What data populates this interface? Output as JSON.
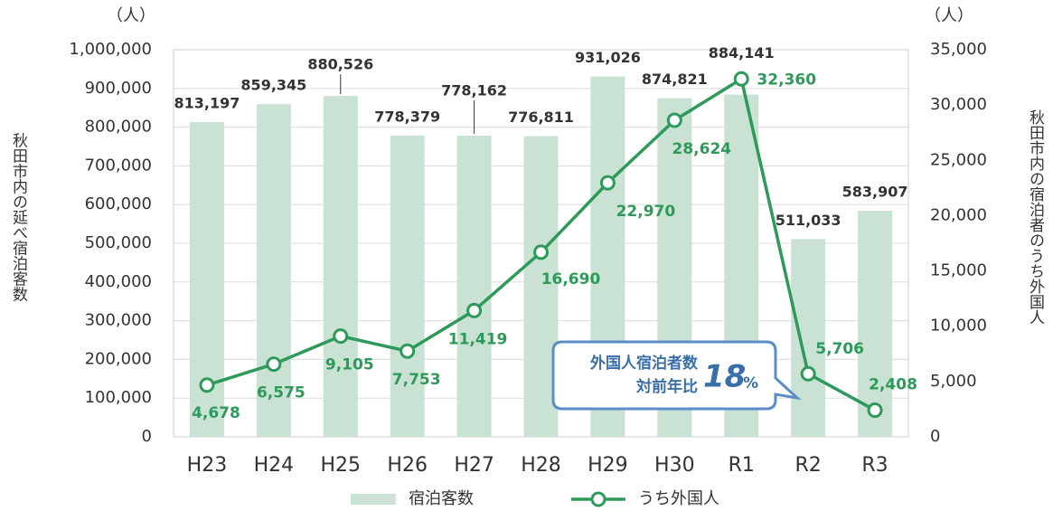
{
  "chart_data": {
    "type": "bar-line",
    "categories": [
      "H23",
      "H24",
      "H25",
      "H26",
      "H27",
      "H28",
      "H29",
      "H30",
      "R1",
      "R2",
      "R3"
    ],
    "series": [
      {
        "name": "宿泊客数",
        "color": "#c9e2d3",
        "type": "bar",
        "values": [
          813197,
          859345,
          880526,
          778379,
          778162,
          776811,
          931026,
          874821,
          884141,
          511033,
          583907
        ],
        "value_labels": [
          "813,197",
          "859,345",
          "880,526",
          "778,379",
          "778,162",
          "776,811",
          "931,026",
          "874,821",
          "884,141",
          "511,033",
          "583,907"
        ]
      },
      {
        "name": "うち外国人",
        "color": "#2e9a5a",
        "type": "line",
        "axis": "y2",
        "values": [
          4678,
          6575,
          9105,
          7753,
          11419,
          16690,
          22970,
          28624,
          32360,
          5706,
          2408
        ],
        "value_labels": [
          "4,678",
          "6,575",
          "9,105",
          "7,753",
          "11,419",
          "16,690",
          "22,970",
          "28,624",
          "32,360",
          "5,706",
          "2,408"
        ]
      }
    ],
    "ylabel": "秋田市内の延べ宿泊客数",
    "y2label": "秋田市内の宿泊者のうち外国人",
    "yunit": "（人）",
    "y2unit": "（人）",
    "ylim": [
      0,
      1000000
    ],
    "yticks": [
      0,
      {
        "value": 100000,
        "label": "100,000"
      },
      {
        "value": 200000,
        "label": "200,000"
      },
      {
        "value": 300000,
        "label": "300,000"
      },
      {
        "value": 400000,
        "label": "400,000"
      },
      {
        "value": 500000,
        "label": "500,000"
      },
      {
        "value": 600000,
        "label": "600,000"
      },
      {
        "value": 700000,
        "label": "700,000"
      },
      {
        "value": 800000,
        "label": "800,000"
      },
      {
        "value": 900000,
        "label": "900,000"
      },
      {
        "value": 1000000,
        "label": "1,000,000"
      }
    ],
    "y2lim": [
      0,
      35000
    ],
    "y2ticks": [
      0,
      {
        "value": 5000,
        "label": "5,000"
      },
      {
        "value": 10000,
        "label": "10,000"
      },
      {
        "value": 15000,
        "label": "15,000"
      },
      {
        "value": 20000,
        "label": "20,000"
      },
      {
        "value": 25000,
        "label": "25,000"
      },
      {
        "value": 30000,
        "label": "30,000"
      },
      {
        "value": 35000,
        "label": "35,000"
      }
    ],
    "grid": true,
    "legend": "bottom",
    "annotation": {
      "line1": "外国人宿泊者数",
      "line2": "対前年比",
      "value": "18",
      "unit": "%"
    }
  }
}
